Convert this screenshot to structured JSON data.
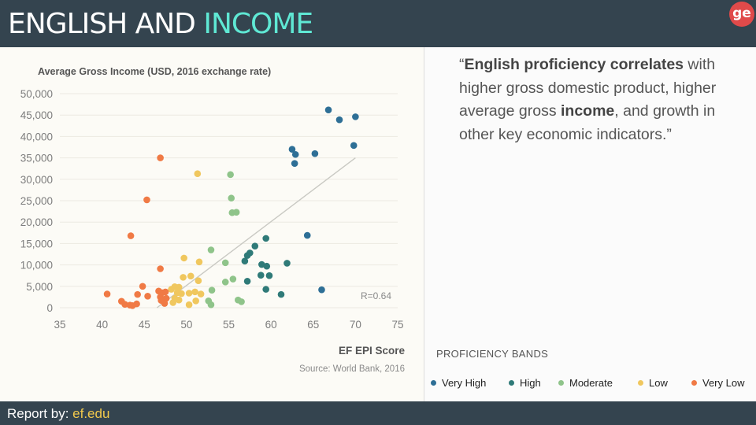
{
  "header": {
    "title_part1": "ENGLISH AND ",
    "title_part2": "INCOME",
    "logo_text": "ge"
  },
  "quote": {
    "open": "“",
    "bold1": "English proficiency correlates",
    "text1": " with higher gross domestic product, higher average gross ",
    "bold2": "income",
    "text2": ", and growth in other key economic indicators.”"
  },
  "legend": {
    "title": "PROFICIENCY BANDS",
    "items": [
      {
        "label": "Very High",
        "color": "#2e6f96"
      },
      {
        "label": "High",
        "color": "#2f7a78"
      },
      {
        "label": "Moderate",
        "color": "#8fc48a"
      },
      {
        "label": "Low",
        "color": "#f0c75e"
      },
      {
        "label": "Very Low",
        "color": "#f07a45"
      }
    ]
  },
  "footer": {
    "label": "Report by: ",
    "link": "ef.edu"
  },
  "chart_data": {
    "type": "scatter",
    "title": "Average Gross Income (USD, 2016 exchange rate)",
    "xlabel": "EF EPI Score",
    "ylabel": "Average Gross Income (USD, 2016 exchange rate)",
    "source": "Source: World Bank, 2016",
    "annotation": "R=0.64",
    "xlim": [
      35,
      75
    ],
    "ylim": [
      0,
      50000
    ],
    "x_ticks": [
      35,
      40,
      45,
      50,
      55,
      60,
      65,
      70,
      75
    ],
    "y_ticks": [
      0,
      5000,
      10000,
      15000,
      20000,
      25000,
      30000,
      35000,
      40000,
      45000,
      50000
    ],
    "x_tick_labels": [
      "35",
      "40",
      "45",
      "50",
      "55",
      "60",
      "65",
      "70",
      "75"
    ],
    "y_tick_labels": [
      "0",
      "5,000",
      "10,000",
      "15,000",
      "20,000",
      "25,000",
      "30,000",
      "35,000",
      "40,000",
      "45,000",
      "50,000"
    ],
    "trendline": {
      "x": [
        46.5,
        70
      ],
      "y": [
        0,
        35000
      ]
    },
    "series": [
      {
        "name": "Very High",
        "color": "#2e6f96",
        "points": [
          [
            66.8,
            46200
          ],
          [
            68.1,
            43900
          ],
          [
            70.0,
            44600
          ],
          [
            69.8,
            37900
          ],
          [
            62.5,
            37000
          ],
          [
            62.9,
            35800
          ],
          [
            65.2,
            36000
          ],
          [
            62.8,
            33700
          ],
          [
            64.3,
            16900
          ],
          [
            66.0,
            4200
          ]
        ]
      },
      {
        "name": "High",
        "color": "#2f7a78",
        "points": [
          [
            59.4,
            16200
          ],
          [
            58.1,
            14400
          ],
          [
            57.5,
            12800
          ],
          [
            57.2,
            12200
          ],
          [
            56.9,
            10900
          ],
          [
            58.9,
            10100
          ],
          [
            59.5,
            9700
          ],
          [
            61.9,
            10400
          ],
          [
            58.8,
            7600
          ],
          [
            59.8,
            7500
          ],
          [
            57.2,
            6200
          ],
          [
            59.4,
            4300
          ],
          [
            61.2,
            3100
          ]
        ]
      },
      {
        "name": "Moderate",
        "color": "#8fc48a",
        "points": [
          [
            55.2,
            31100
          ],
          [
            55.3,
            25600
          ],
          [
            55.4,
            22200
          ],
          [
            55.9,
            22300
          ],
          [
            52.9,
            13500
          ],
          [
            54.6,
            10500
          ],
          [
            55.5,
            6700
          ],
          [
            54.6,
            6000
          ],
          [
            53.0,
            4100
          ],
          [
            56.1,
            1800
          ],
          [
            56.5,
            1400
          ],
          [
            52.6,
            1600
          ],
          [
            52.9,
            700
          ]
        ]
      },
      {
        "name": "Low",
        "color": "#f0c75e",
        "points": [
          [
            51.3,
            31300
          ],
          [
            49.7,
            11600
          ],
          [
            51.5,
            10700
          ],
          [
            50.5,
            7400
          ],
          [
            49.6,
            7100
          ],
          [
            51.4,
            6300
          ],
          [
            48.6,
            4900
          ],
          [
            49.1,
            4800
          ],
          [
            48.2,
            4300
          ],
          [
            48.9,
            3500
          ],
          [
            49.4,
            3300
          ],
          [
            50.3,
            3400
          ],
          [
            51.0,
            3700
          ],
          [
            51.7,
            3200
          ],
          [
            48.6,
            2200
          ],
          [
            49.1,
            1800
          ],
          [
            51.1,
            1600
          ],
          [
            48.4,
            1200
          ],
          [
            50.3,
            700
          ]
        ]
      },
      {
        "name": "Very Low",
        "color": "#f07a45",
        "points": [
          [
            46.9,
            35000
          ],
          [
            45.3,
            25200
          ],
          [
            43.4,
            16800
          ],
          [
            46.9,
            9100
          ],
          [
            44.8,
            5000
          ],
          [
            46.7,
            3900
          ],
          [
            47.1,
            3500
          ],
          [
            47.5,
            3700
          ],
          [
            44.2,
            3100
          ],
          [
            45.4,
            2700
          ],
          [
            40.6,
            3200
          ],
          [
            46.9,
            2500
          ],
          [
            47.6,
            2200
          ],
          [
            47.0,
            1700
          ],
          [
            42.3,
            1500
          ],
          [
            42.7,
            800
          ],
          [
            43.3,
            600
          ],
          [
            43.6,
            500
          ],
          [
            44.1,
            900
          ],
          [
            47.4,
            1000
          ]
        ]
      }
    ]
  }
}
